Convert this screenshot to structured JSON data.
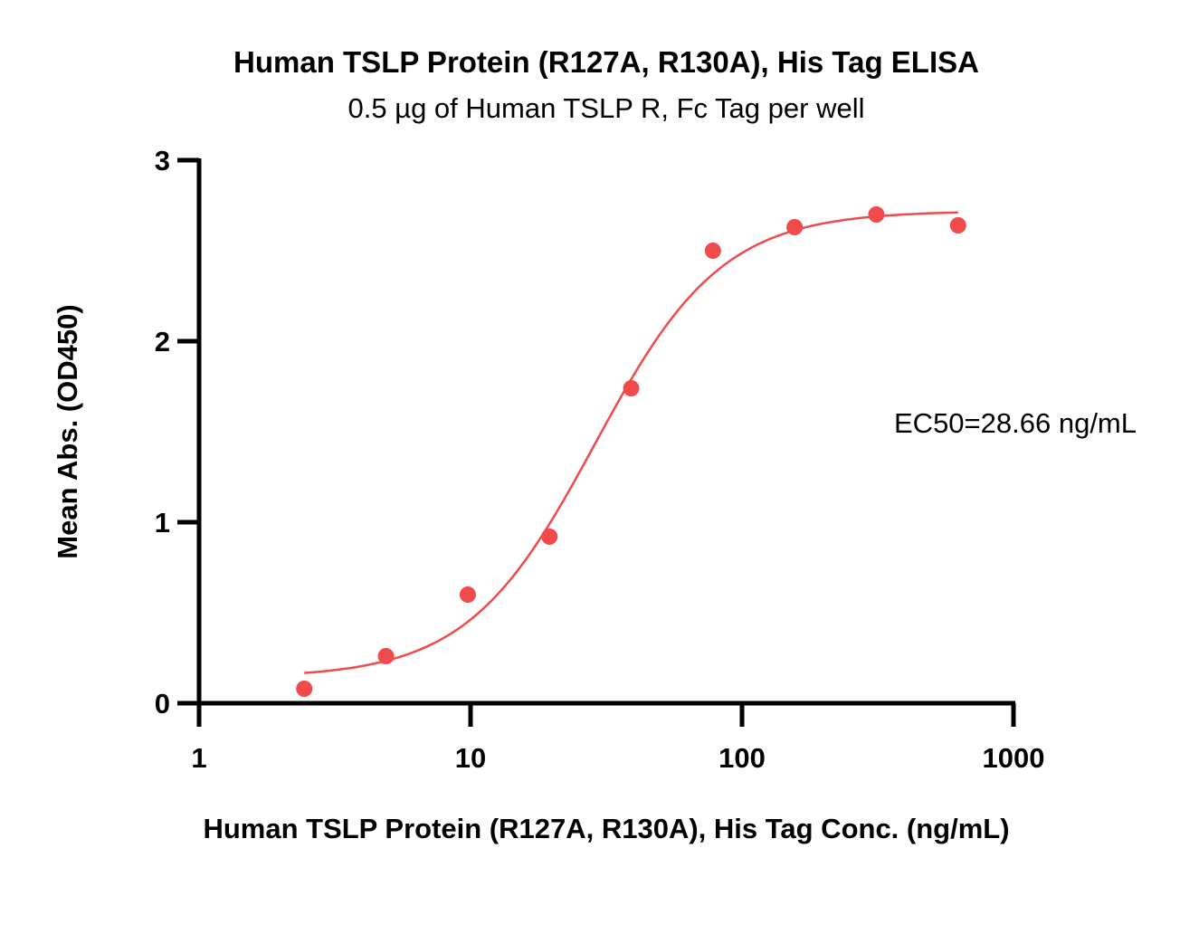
{
  "chart_data": {
    "type": "scatter",
    "title": "Human TSLP Protein (R127A, R130A), His Tag ELISA",
    "subtitle": "0.5 µg of Human TSLP R, Fc Tag per well",
    "xlabel": "Human TSLP Protein (R127A, R130A), His Tag Conc. (ng/mL)",
    "ylabel": "Mean Abs. (OD450)",
    "x_scale": "log",
    "xlim": [
      1,
      1000
    ],
    "ylim": [
      0,
      3
    ],
    "x_ticks": [
      1,
      10,
      100,
      1000
    ],
    "x_tick_labels": [
      "1",
      "10",
      "100",
      "1000"
    ],
    "y_ticks": [
      0,
      1,
      2,
      3
    ],
    "y_tick_labels": [
      "0",
      "1",
      "2",
      "3"
    ],
    "grid": false,
    "series": [
      {
        "x": [
          2.44,
          4.88,
          9.77,
          19.53,
          39.06,
          78.13,
          156.25,
          312.5,
          625
        ],
        "y": [
          0.08,
          0.26,
          0.6,
          0.92,
          1.74,
          2.5,
          2.63,
          2.7,
          2.64
        ],
        "color": "#f04a4a"
      }
    ],
    "fit_curve": {
      "model": "4PL",
      "bottom": 0.14,
      "top": 2.72,
      "ec50": 28.66,
      "hill": 1.85,
      "x_range": [
        2.44,
        625
      ],
      "color": "#f04a4a"
    },
    "annotations": [
      {
        "text": "EC50=28.66 ng/mL"
      }
    ]
  }
}
